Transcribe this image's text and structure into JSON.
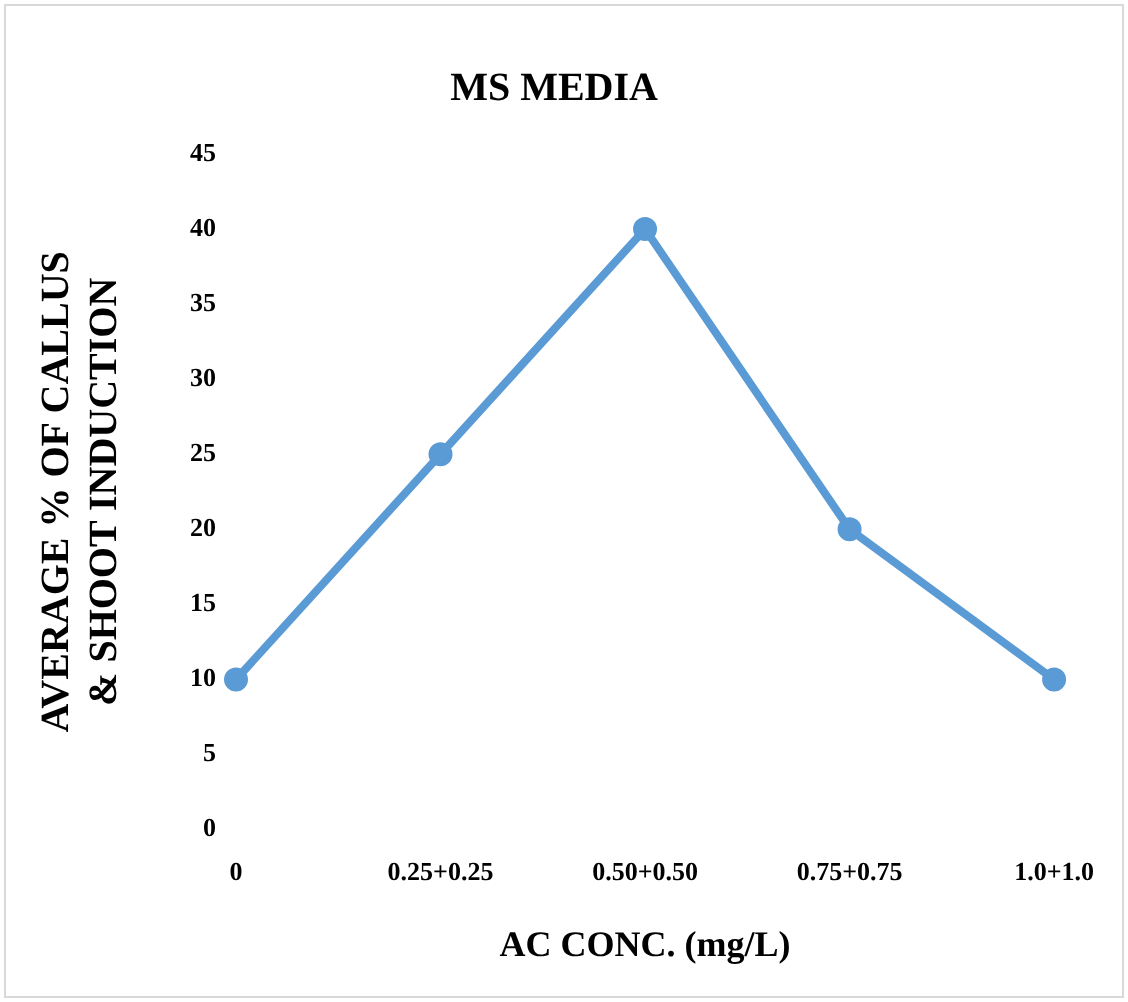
{
  "chart_data": {
    "type": "line",
    "title": "MS MEDIA",
    "xlabel": "AC CONC. (mg/L)",
    "ylabel": "AVERAGE % OF CALLUS & SHOOT INDUCTION",
    "categories": [
      "0",
      "0.25+0.25",
      "0.50+0.50",
      "0.75+0.75",
      "1.0+1.0"
    ],
    "series": [
      {
        "color": "#5b9bd5",
        "values": [
          10,
          25,
          40,
          20,
          10
        ]
      }
    ],
    "ylim": [
      0,
      45
    ],
    "yticks": [
      0,
      5,
      10,
      15,
      20,
      25,
      30,
      35,
      40,
      45
    ],
    "grid": false,
    "legend": false,
    "marker": "circle",
    "line_style": "solid"
  }
}
